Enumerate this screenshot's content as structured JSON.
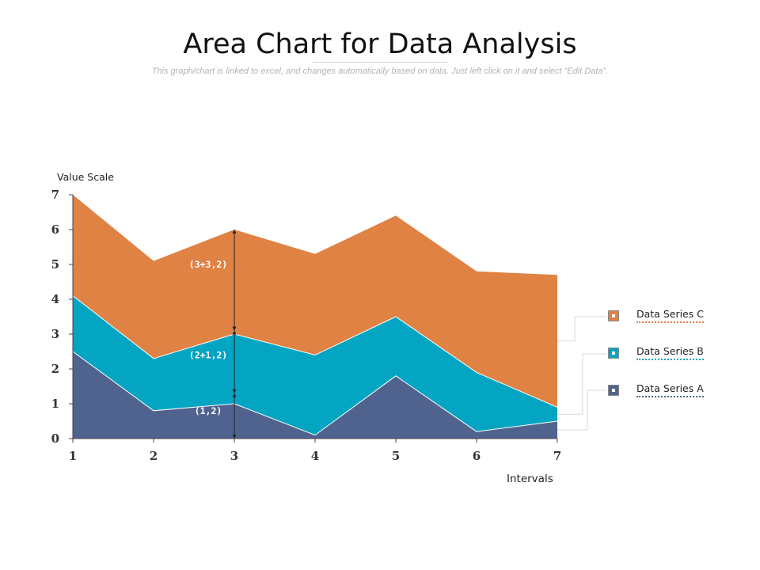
{
  "title": "Area Chart for Data Analysis",
  "subtitle": "This graph/chart is linked to excel, and changes automatically based on data. Just left click on it and select “Edit Data”.",
  "chart_data": {
    "type": "area",
    "stacked": true,
    "x": [
      1,
      2,
      3,
      4,
      5,
      6,
      7
    ],
    "xlabel": "Intervals",
    "ylabel": "Value Scale",
    "ylim": [
      0,
      7
    ],
    "yticks": [
      0,
      1,
      2,
      3,
      4,
      5,
      6,
      7
    ],
    "grid": false,
    "legend_position": "right",
    "series": [
      {
        "name": "Data Series A",
        "color": "#50638f",
        "values": [
          2.5,
          0.8,
          1.0,
          0.1,
          1.8,
          0.2,
          0.5
        ]
      },
      {
        "name": "Data Series B",
        "color": "#04a5c2",
        "values": [
          1.6,
          1.5,
          2.0,
          2.3,
          1.7,
          1.7,
          0.4
        ]
      },
      {
        "name": "Data Series C",
        "color": "#df8244",
        "values": [
          2.9,
          2.8,
          3.0,
          2.9,
          2.9,
          2.9,
          3.8
        ]
      }
    ],
    "annotations": [
      {
        "text": "(1,2)",
        "x": 3,
        "from": 0,
        "to": 1.3,
        "label_y": 0.8
      },
      {
        "text": "(2+1,2)",
        "x": 3,
        "from": 1.3,
        "to": 3.1,
        "label_y": 2.4
      },
      {
        "text": "(3+3,2)",
        "x": 3,
        "from": 3.1,
        "to": 6.0,
        "label_y": 5.0
      }
    ]
  }
}
